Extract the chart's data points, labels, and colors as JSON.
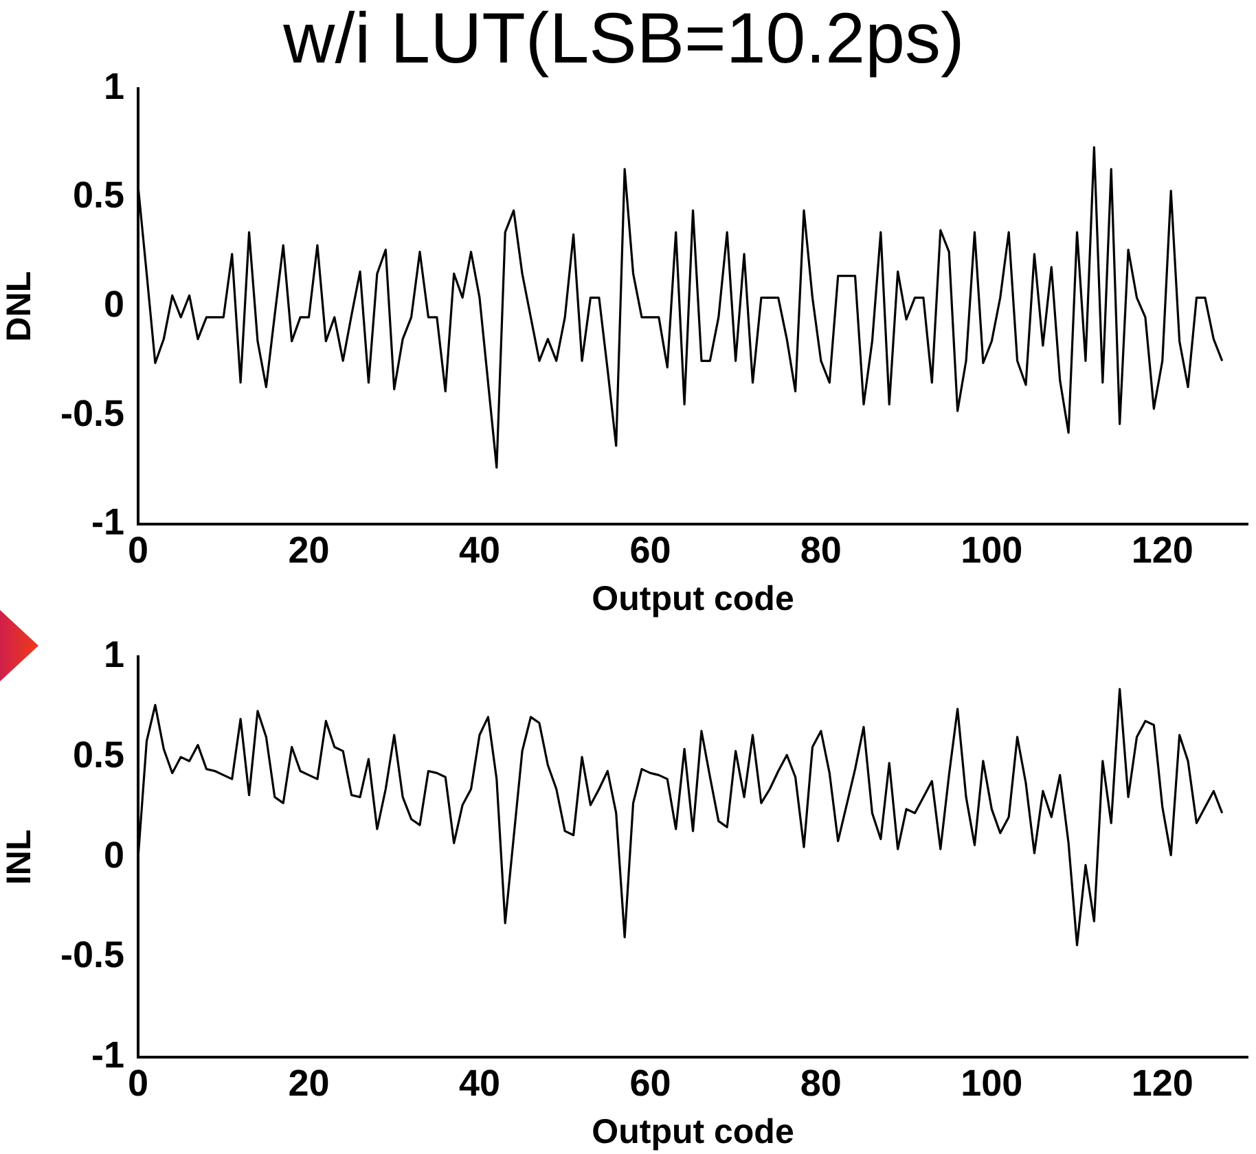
{
  "chart_data": [
    {
      "type": "line",
      "title": "w/i LUT(LSB=10.2ps)",
      "xlabel": "Output code",
      "ylabel": "DNL",
      "marker": "none",
      "grid": false,
      "x": [
        0,
        1,
        2,
        3,
        4,
        5,
        6,
        7,
        8,
        9,
        10,
        11,
        12,
        13,
        14,
        15,
        16,
        17,
        18,
        19,
        20,
        21,
        22,
        23,
        24,
        25,
        26,
        27,
        28,
        29,
        30,
        31,
        32,
        33,
        34,
        35,
        36,
        37,
        38,
        39,
        40,
        41,
        42,
        43,
        44,
        45,
        46,
        47,
        48,
        49,
        50,
        51,
        52,
        53,
        54,
        55,
        56,
        57,
        58,
        59,
        60,
        61,
        62,
        63,
        64,
        65,
        66,
        67,
        68,
        69,
        70,
        71,
        72,
        73,
        74,
        75,
        76,
        77,
        78,
        79,
        80,
        81,
        82,
        83,
        84,
        85,
        86,
        87,
        88,
        89,
        90,
        91,
        92,
        93,
        94,
        95,
        96,
        97,
        98,
        99,
        100,
        101,
        102,
        103,
        104,
        105,
        106,
        107,
        108,
        109,
        110,
        111,
        112,
        113,
        114,
        115,
        116,
        117,
        118,
        119,
        120,
        121,
        122,
        123,
        124,
        125,
        126,
        127
      ],
      "xlim": [
        0,
        130
      ],
      "xticks": [
        0,
        20,
        40,
        60,
        80,
        100,
        120
      ],
      "ylim": [
        -1,
        1
      ],
      "yticks": [
        -1,
        -0.5,
        0,
        0.5,
        1
      ],
      "series": [
        {
          "color": "#000000",
          "values": [
            0.55,
            0.15,
            -0.26,
            -0.15,
            0.05,
            -0.05,
            0.05,
            -0.15,
            -0.05,
            -0.05,
            -0.05,
            0.24,
            -0.35,
            0.34,
            -0.16,
            -0.37,
            -0.04,
            0.28,
            -0.16,
            -0.05,
            -0.05,
            0.28,
            -0.16,
            -0.05,
            -0.25,
            -0.04,
            0.16,
            -0.35,
            0.15,
            0.26,
            -0.38,
            -0.15,
            -0.05,
            0.25,
            -0.05,
            -0.05,
            -0.39,
            0.15,
            0.04,
            0.25,
            0.04,
            -0.35,
            -0.74,
            0.34,
            0.44,
            0.15,
            -0.05,
            -0.25,
            -0.15,
            -0.25,
            -0.05,
            0.33,
            -0.25,
            0.04,
            0.04,
            -0.29,
            -0.64,
            0.63,
            0.15,
            -0.05,
            -0.05,
            -0.05,
            -0.28,
            0.34,
            -0.45,
            0.44,
            -0.25,
            -0.25,
            -0.05,
            0.34,
            -0.25,
            0.24,
            -0.35,
            0.04,
            0.04,
            0.04,
            -0.15,
            -0.39,
            0.44,
            0.04,
            -0.25,
            -0.35,
            0.14,
            0.14,
            0.14,
            -0.45,
            -0.16,
            0.34,
            -0.45,
            0.16,
            -0.06,
            0.04,
            0.04,
            -0.35,
            0.35,
            0.25,
            -0.48,
            -0.25,
            0.34,
            -0.26,
            -0.16,
            0.04,
            0.34,
            -0.25,
            -0.36,
            0.24,
            -0.18,
            0.18,
            -0.34,
            -0.58,
            0.34,
            -0.25,
            0.73,
            -0.35,
            0.63,
            -0.54,
            0.26,
            0.04,
            -0.05,
            -0.47,
            -0.25,
            0.53,
            -0.16,
            -0.37,
            0.04,
            0.04,
            -0.15,
            -0.25
          ]
        }
      ]
    },
    {
      "type": "line",
      "xlabel": "Output code",
      "ylabel": "INL",
      "marker": "none",
      "grid": false,
      "x": [
        0,
        1,
        2,
        3,
        4,
        5,
        6,
        7,
        8,
        9,
        10,
        11,
        12,
        13,
        14,
        15,
        16,
        17,
        18,
        19,
        20,
        21,
        22,
        23,
        24,
        25,
        26,
        27,
        28,
        29,
        30,
        31,
        32,
        33,
        34,
        35,
        36,
        37,
        38,
        39,
        40,
        41,
        42,
        43,
        44,
        45,
        46,
        47,
        48,
        49,
        50,
        51,
        52,
        53,
        54,
        55,
        56,
        57,
        58,
        59,
        60,
        61,
        62,
        63,
        64,
        65,
        66,
        67,
        68,
        69,
        70,
        71,
        72,
        73,
        74,
        75,
        76,
        77,
        78,
        79,
        80,
        81,
        82,
        83,
        84,
        85,
        86,
        87,
        88,
        89,
        90,
        91,
        92,
        93,
        94,
        95,
        96,
        97,
        98,
        99,
        100,
        101,
        102,
        103,
        104,
        105,
        106,
        107,
        108,
        109,
        110,
        111,
        112,
        113,
        114,
        115,
        116,
        117,
        118,
        119,
        120,
        121,
        122,
        123,
        124,
        125,
        126,
        127
      ],
      "xlim": [
        0,
        130
      ],
      "xticks": [
        0,
        20,
        40,
        60,
        80,
        100,
        120
      ],
      "ylim": [
        -1,
        1
      ],
      "yticks": [
        -1,
        -0.5,
        0,
        0.5,
        1
      ],
      "series": [
        {
          "color": "#000000",
          "values": [
            0,
            0.58,
            0.76,
            0.54,
            0.42,
            0.5,
            0.48,
            0.56,
            0.44,
            0.43,
            0.41,
            0.39,
            0.69,
            0.31,
            0.73,
            0.6,
            0.3,
            0.27,
            0.55,
            0.43,
            0.41,
            0.39,
            0.68,
            0.55,
            0.53,
            0.31,
            0.3,
            0.49,
            0.14,
            0.34,
            0.61,
            0.3,
            0.19,
            0.16,
            0.43,
            0.42,
            0.4,
            0.07,
            0.26,
            0.34,
            0.61,
            0.7,
            0.39,
            -0.33,
            0.1,
            0.53,
            0.7,
            0.67,
            0.46,
            0.34,
            0.13,
            0.11,
            0.5,
            0.26,
            0.34,
            0.43,
            0.22,
            -0.4,
            0.27,
            0.44,
            0.42,
            0.41,
            0.39,
            0.14,
            0.54,
            0.13,
            0.63,
            0.4,
            0.18,
            0.15,
            0.53,
            0.3,
            0.61,
            0.27,
            0.34,
            0.43,
            0.51,
            0.4,
            0.05,
            0.55,
            0.63,
            0.42,
            0.08,
            0.26,
            0.44,
            0.65,
            0.22,
            0.09,
            0.47,
            0.04,
            0.24,
            0.22,
            0.3,
            0.38,
            0.04,
            0.41,
            0.74,
            0.3,
            0.06,
            0.48,
            0.24,
            0.12,
            0.2,
            0.6,
            0.37,
            0.02,
            0.33,
            0.2,
            0.41,
            0.07,
            -0.44,
            -0.04,
            -0.32,
            0.48,
            0.17,
            0.84,
            0.3,
            0.6,
            0.68,
            0.66,
            0.25,
            0.01,
            0.61,
            0.48,
            0.17,
            0.25,
            0.33,
            0.22
          ]
        }
      ]
    }
  ]
}
